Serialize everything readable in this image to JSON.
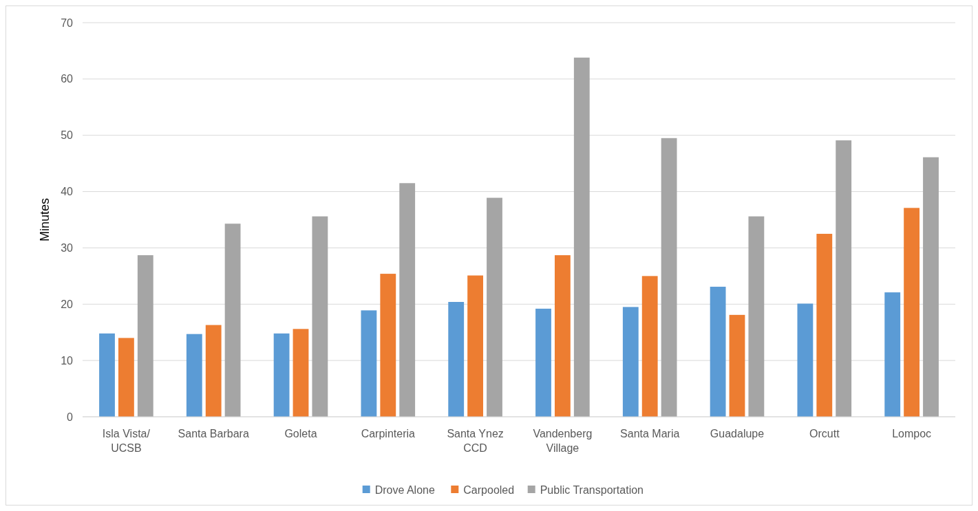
{
  "chart_data": {
    "type": "bar",
    "ylabel": "Minutes",
    "categories": [
      "Isla Vista/\nUCSB",
      "Santa Barbara",
      "Goleta",
      "Carpinteria",
      "Santa Ynez\nCCD",
      "Vandenberg\nVillage",
      "Santa Maria",
      "Guadalupe",
      "Orcutt",
      "Lompoc"
    ],
    "series": [
      {
        "name": "Drove Alone",
        "color": "#5b9bd5",
        "values": [
          14.8,
          14.7,
          14.8,
          18.9,
          20.4,
          19.2,
          19.5,
          23.1,
          20.1,
          22.1
        ]
      },
      {
        "name": "Carpooled",
        "color": "#ed7d31",
        "values": [
          14.0,
          16.3,
          15.6,
          25.4,
          25.1,
          28.7,
          25.0,
          18.1,
          32.5,
          37.1
        ]
      },
      {
        "name": "Public Transportation",
        "color": "#a5a5a5",
        "values": [
          28.7,
          34.3,
          35.6,
          41.5,
          38.9,
          63.8,
          49.5,
          35.6,
          49.1,
          46.1
        ]
      }
    ],
    "ylim": [
      0,
      70
    ],
    "yticks": [
      0,
      10,
      20,
      30,
      40,
      50,
      60,
      70
    ],
    "grid": "y",
    "legend": "bottom"
  }
}
